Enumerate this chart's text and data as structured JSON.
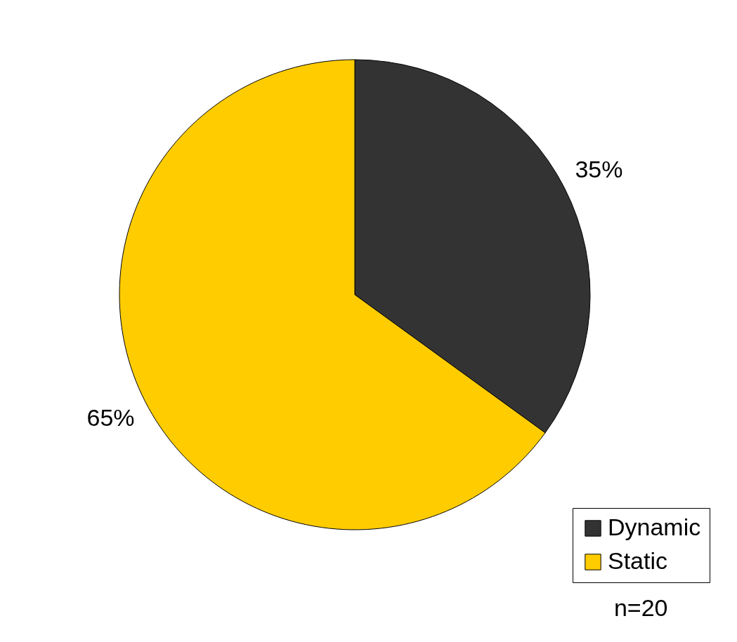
{
  "chart_data": {
    "type": "pie",
    "categories": [
      "Dynamic",
      "Static"
    ],
    "values": [
      35,
      65
    ],
    "colors": [
      "#333333",
      "#ffcc00"
    ],
    "value_labels": [
      "35%",
      "65%"
    ],
    "legend": "bottom right",
    "annotations": [
      "n=20"
    ]
  }
}
